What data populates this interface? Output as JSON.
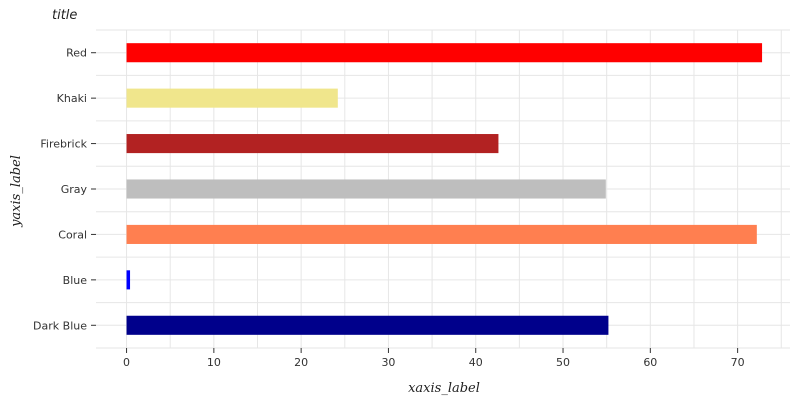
{
  "chart_data": {
    "type": "bar",
    "orientation": "horizontal",
    "title": "title",
    "xlabel": "xaxis_label",
    "ylabel": "yaxis_label",
    "categories": [
      "Dark Blue",
      "Blue",
      "Coral",
      "Gray",
      "Firebrick",
      "Khaki",
      "Red"
    ],
    "values": [
      55.2,
      0.4,
      72.2,
      54.9,
      42.6,
      24.2,
      72.8
    ],
    "colors": [
      "#00008b",
      "#0000ff",
      "#ff7f50",
      "#bebebe",
      "#b22222",
      "#f0e68c",
      "#ff0000"
    ],
    "xlim": [
      -3.5,
      76
    ],
    "xticks": [
      0,
      10,
      20,
      30,
      40,
      50,
      60,
      70
    ],
    "grid": true
  }
}
